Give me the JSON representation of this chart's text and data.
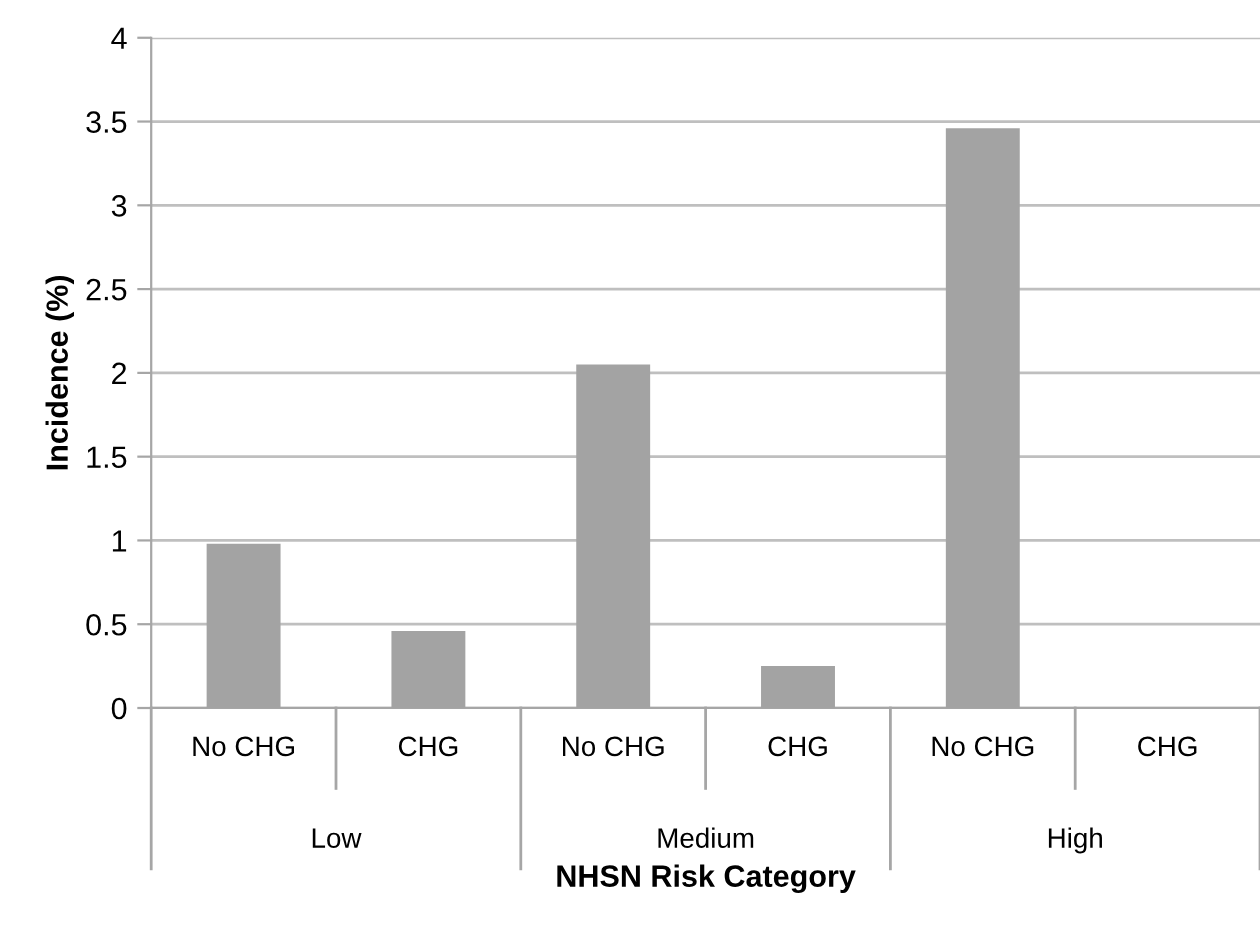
{
  "chart_data": {
    "type": "bar",
    "xlabel": "NHSN Risk Category",
    "ylabel": "Incidence (%)",
    "categories": [
      "No CHG",
      "CHG",
      "No CHG",
      "CHG",
      "No CHG",
      "CHG"
    ],
    "values": [
      0.98,
      0.46,
      2.05,
      0.25,
      3.46,
      0
    ],
    "color": "#a3a3a3",
    "annotations": [
      "Low",
      "Medium",
      "High"
    ],
    "ylim": [
      0,
      4
    ],
    "yticks": [
      0,
      0.5,
      1,
      1.5,
      2,
      2.5,
      3,
      3.5,
      4
    ],
    "grid": "y"
  }
}
